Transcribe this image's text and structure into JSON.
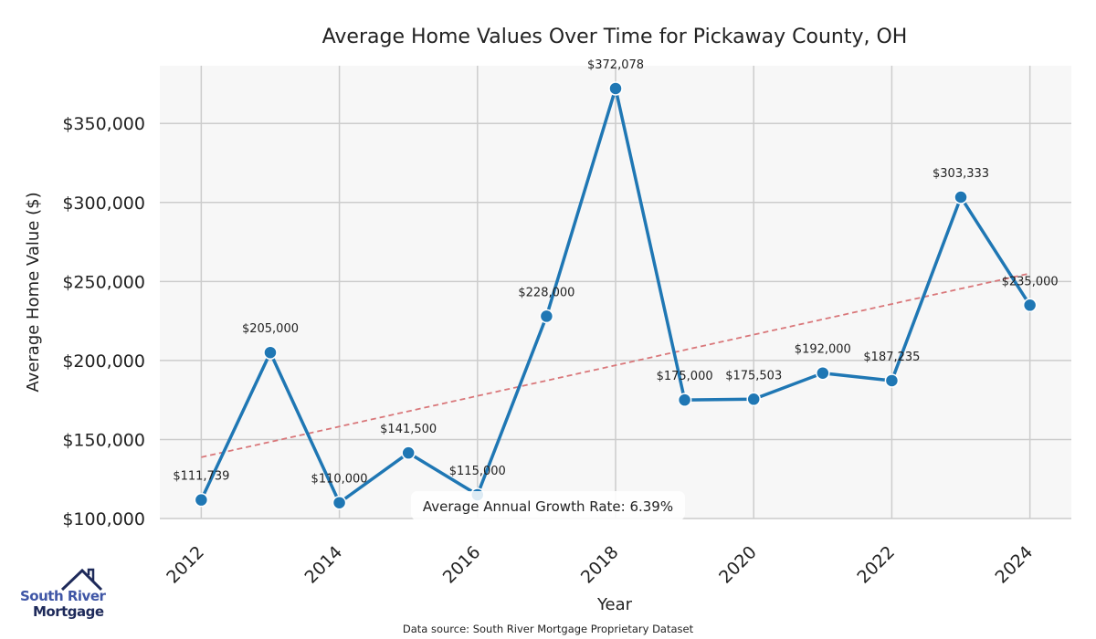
{
  "chart_data": {
    "type": "line",
    "title": "Average Home Values Over Time for Pickaway County, OH",
    "xlabel": "Year",
    "ylabel": "Average Home Value ($)",
    "x": [
      2012,
      2013,
      2014,
      2015,
      2016,
      2017,
      2018,
      2019,
      2020,
      2021,
      2022,
      2023,
      2024
    ],
    "values": [
      111739,
      205000,
      110000,
      141500,
      115000,
      228000,
      372078,
      175000,
      175503,
      192000,
      187235,
      303333,
      235000
    ],
    "data_labels": [
      "$111,739",
      "$205,000",
      "$110,000",
      "$141,500",
      "$115,000",
      "$228,000",
      "$372,078",
      "$175,000",
      "$175,503",
      "$192,000",
      "$187,235",
      "$303,333",
      "$235,000"
    ],
    "xticks": [
      2012,
      2014,
      2016,
      2018,
      2020,
      2022,
      2024
    ],
    "xtick_labels": [
      "2012",
      "2014",
      "2016",
      "2018",
      "2020",
      "2022",
      "2024"
    ],
    "yticks": [
      100000,
      150000,
      200000,
      250000,
      300000,
      350000
    ],
    "ytick_labels": [
      "$100,000",
      "$150,000",
      "$200,000",
      "$250,000",
      "$300,000",
      "$350,000"
    ],
    "xlim": [
      2011.4,
      2024.6
    ],
    "ylim": [
      100000,
      386500
    ],
    "trend": {
      "x": [
        2012,
        2024
      ],
      "y": [
        138800,
        255100
      ]
    },
    "grid": true,
    "annotation": "Average Annual Growth Rate: 6.39%",
    "source": "Data source: South River Mortgage Proprietary Dataset",
    "colors": {
      "line": "#1f77b4",
      "trend": "#d9777a",
      "plot_bg": "#f7f7f7",
      "grid": "#cccccc"
    }
  },
  "logo": {
    "line1": "South River",
    "line2": "Mortgage"
  }
}
